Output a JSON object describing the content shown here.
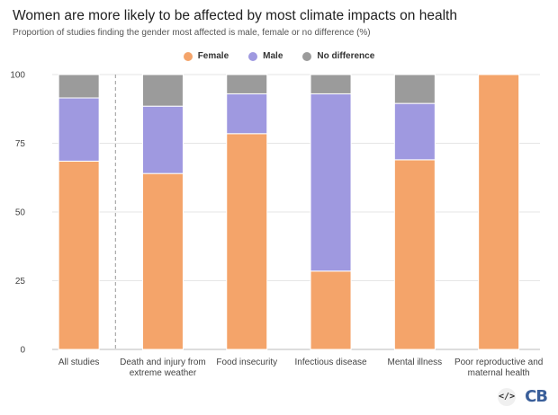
{
  "chart_data": {
    "type": "bar",
    "stacked": true,
    "title": "Women are more likely to be affected by most climate impacts on health",
    "subtitle": "Proportion of studies finding the gender most affected is male, female or no difference (%)",
    "categories": [
      [
        "All studies"
      ],
      [
        "Death and injury from",
        "extreme weather"
      ],
      [
        "Food insecurity"
      ],
      [
        "Infectious disease"
      ],
      [
        "Mental illness"
      ],
      [
        "Poor reproductive and",
        "maternal health"
      ]
    ],
    "series": [
      {
        "name": "Female",
        "color": "#f4a46a",
        "values": [
          68.5,
          64,
          78.5,
          28.5,
          69,
          100
        ]
      },
      {
        "name": "Male",
        "color": "#9f99e0",
        "values": [
          23,
          24.5,
          14.5,
          64.5,
          20.5,
          0
        ]
      },
      {
        "name": "No difference",
        "color": "#9b9b9b",
        "values": [
          8.5,
          11.5,
          7,
          7,
          10.5,
          0
        ]
      }
    ],
    "ylim": [
      0,
      100
    ],
    "yticks": [
      0,
      25,
      50,
      75,
      100
    ],
    "grid": true,
    "legend_position": "top-center"
  },
  "brand": {
    "embed_icon": "</>",
    "logo_text": "CB"
  }
}
